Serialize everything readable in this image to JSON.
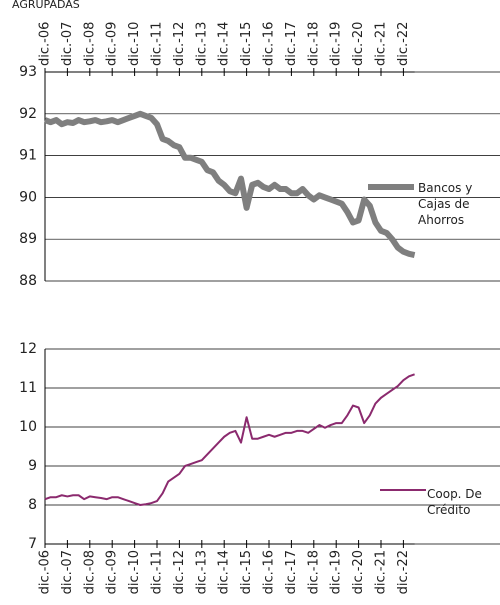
{
  "chart_data": [
    {
      "type": "line",
      "title": "AGRUPADAS",
      "x_axis_position": "top",
      "categories": [
        "dic.-06",
        null,
        null,
        null,
        "dic.-07",
        null,
        null,
        null,
        "dic.-08",
        null,
        null,
        null,
        "dic.-09",
        null,
        null,
        null,
        "dic.-10",
        null,
        null,
        null,
        "dic.-11",
        null,
        null,
        null,
        "dic.-12",
        null,
        null,
        null,
        "dic.-13",
        null,
        null,
        null,
        "dic.-14",
        null,
        null,
        null,
        "dic.-15",
        null,
        null,
        null,
        "dic.-16",
        null,
        null,
        null,
        "dic.-17",
        null,
        null,
        null,
        "dic.-18",
        null,
        null,
        null,
        "dic.-19",
        null,
        null,
        null,
        "dic.-20",
        null,
        null,
        null,
        "dic.-21",
        null,
        null,
        null,
        "dic.-22",
        null,
        null
      ],
      "series": [
        {
          "name": "Bancos y Cajas de Ahorros",
          "color": "#7f7f7f",
          "values": [
            91.85,
            91.8,
            91.85,
            91.75,
            91.8,
            91.78,
            91.85,
            91.8,
            91.82,
            91.85,
            91.8,
            91.82,
            91.85,
            91.8,
            91.85,
            91.9,
            91.95,
            92.0,
            91.95,
            91.9,
            91.75,
            91.4,
            91.35,
            91.25,
            91.2,
            90.95,
            90.95,
            90.9,
            90.85,
            90.65,
            90.6,
            90.4,
            90.3,
            90.15,
            90.1,
            90.45,
            89.75,
            90.3,
            90.35,
            90.25,
            90.2,
            90.3,
            90.2,
            90.2,
            90.1,
            90.1,
            90.2,
            90.05,
            89.95,
            90.05,
            90.0,
            89.95,
            89.9,
            89.85,
            89.65,
            89.4,
            89.45,
            89.95,
            89.8,
            89.4,
            89.2,
            89.15,
            89.0,
            88.8,
            88.7,
            88.65,
            88.62
          ]
        }
      ],
      "ylim": [
        88,
        93
      ],
      "yticks": [
        88,
        89,
        90,
        91,
        92,
        93
      ],
      "grid": true
    },
    {
      "type": "line",
      "x_axis_position": "bottom",
      "categories": [
        "dic.-06",
        null,
        null,
        null,
        "dic.-07",
        null,
        null,
        null,
        "dic.-08",
        null,
        null,
        null,
        "dic.-09",
        null,
        null,
        null,
        "dic.-10",
        null,
        null,
        null,
        "dic.-11",
        null,
        null,
        null,
        "dic.-12",
        null,
        null,
        null,
        "dic.-13",
        null,
        null,
        null,
        "dic.-14",
        null,
        null,
        null,
        "dic.-15",
        null,
        null,
        null,
        "dic.-16",
        null,
        null,
        null,
        "dic.-17",
        null,
        null,
        null,
        "dic.-18",
        null,
        null,
        null,
        "dic.-19",
        null,
        null,
        null,
        "dic.-20",
        null,
        null,
        null,
        "dic.-21",
        null,
        null,
        null,
        "dic.-22",
        null,
        null
      ],
      "series": [
        {
          "name": "Coop. De Crédito",
          "color": "#8b2a6e",
          "values": [
            8.15,
            8.2,
            8.2,
            8.25,
            8.22,
            8.25,
            8.25,
            8.15,
            8.22,
            8.2,
            8.18,
            8.15,
            8.2,
            8.2,
            8.15,
            8.1,
            8.05,
            8.0,
            8.02,
            8.05,
            8.1,
            8.3,
            8.6,
            8.7,
            8.8,
            9.0,
            9.05,
            9.1,
            9.15,
            9.3,
            9.45,
            9.6,
            9.75,
            9.85,
            9.9,
            9.6,
            10.25,
            9.7,
            9.7,
            9.75,
            9.8,
            9.75,
            9.8,
            9.85,
            9.85,
            9.9,
            9.9,
            9.85,
            9.95,
            10.05,
            9.98,
            10.05,
            10.1,
            10.1,
            10.3,
            10.55,
            10.5,
            10.1,
            10.3,
            10.6,
            10.75,
            10.85,
            10.95,
            11.05,
            11.2,
            11.3,
            11.35
          ]
        }
      ],
      "ylim": [
        7,
        12
      ],
      "yticks": [
        7,
        8,
        9,
        10,
        11,
        12
      ],
      "grid": true
    }
  ]
}
